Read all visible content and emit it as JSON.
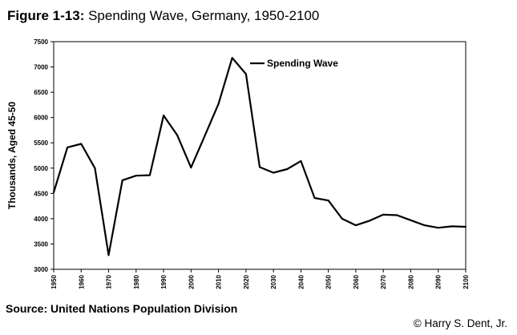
{
  "figure": {
    "number": "Figure 1-13:",
    "title": "Spending Wave, Germany, 1950-2100"
  },
  "source": "Source: United Nations Population Division",
  "copyright": "© Harry S. Dent, Jr.",
  "chart_data": {
    "type": "line",
    "title": "Spending Wave, Germany, 1950-2100",
    "xlabel": "",
    "ylabel": "Thousands, Aged 45-50",
    "xlim": [
      1950,
      2100
    ],
    "ylim": [
      3000,
      7500
    ],
    "x_ticks": [
      "1950",
      "1960",
      "1970",
      "1980",
      "1990",
      "2000",
      "2010",
      "2020",
      "2030",
      "2040",
      "2050",
      "2060",
      "2070",
      "2080",
      "2090",
      "2100"
    ],
    "y_ticks": [
      "7500",
      "7000",
      "6500",
      "6000",
      "5500",
      "5000",
      "4500",
      "4000",
      "3500",
      "3000"
    ],
    "grid": false,
    "legend_position": "top-right",
    "line_color": "#000000",
    "series": [
      {
        "name": "Spending Wave",
        "x": [
          1950,
          1955,
          1960,
          1965,
          1970,
          1975,
          1980,
          1985,
          1990,
          1995,
          2000,
          2005,
          2010,
          2015,
          2020,
          2025,
          2030,
          2035,
          2040,
          2045,
          2050,
          2055,
          2060,
          2065,
          2070,
          2075,
          2080,
          2085,
          2090,
          2095,
          2100
        ],
        "values": [
          4520,
          5410,
          5480,
          5000,
          3280,
          4760,
          4850,
          4860,
          6040,
          5650,
          5010,
          5640,
          6270,
          7180,
          6860,
          5020,
          4910,
          4980,
          5140,
          4410,
          4360,
          4000,
          3870,
          3960,
          4080,
          4070,
          3970,
          3870,
          3820,
          3850,
          3840
        ]
      }
    ]
  }
}
